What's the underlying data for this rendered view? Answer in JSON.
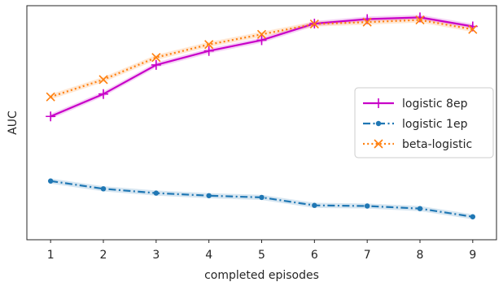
{
  "chart_data": {
    "type": "line",
    "xlabel": "completed episodes",
    "ylabel": "AUC",
    "x": [
      1,
      2,
      3,
      4,
      5,
      6,
      7,
      8,
      9
    ],
    "x_ticks": [
      "1",
      "2",
      "3",
      "4",
      "5",
      "6",
      "7",
      "8",
      "9"
    ],
    "xlim": [
      0.55,
      9.45
    ],
    "ylim": [
      0,
      1
    ],
    "y_tick_labels_shown": false,
    "grid": false,
    "legend_position": "center-right",
    "series": [
      {
        "name": "logistic 8ep",
        "color": "#c800c8",
        "line_style": "solid",
        "marker": "plus",
        "values": [
          0.516,
          0.62,
          0.755,
          0.82,
          0.87,
          0.947,
          0.968,
          0.976,
          0.934
        ],
        "band": 0.012
      },
      {
        "name": "logistic 1ep",
        "color": "#1f77b4",
        "line_style": "dashdot",
        "marker": "dot",
        "values": [
          0.216,
          0.18,
          0.16,
          0.148,
          0.14,
          0.103,
          0.1,
          0.088,
          0.05
        ],
        "band": 0.012
      },
      {
        "name": "beta-logistic",
        "color": "#ff7f0e",
        "line_style": "dotted",
        "marker": "x",
        "values": [
          0.607,
          0.687,
          0.79,
          0.85,
          0.897,
          0.945,
          0.954,
          0.964,
          0.92
        ],
        "band": 0.012
      }
    ]
  }
}
